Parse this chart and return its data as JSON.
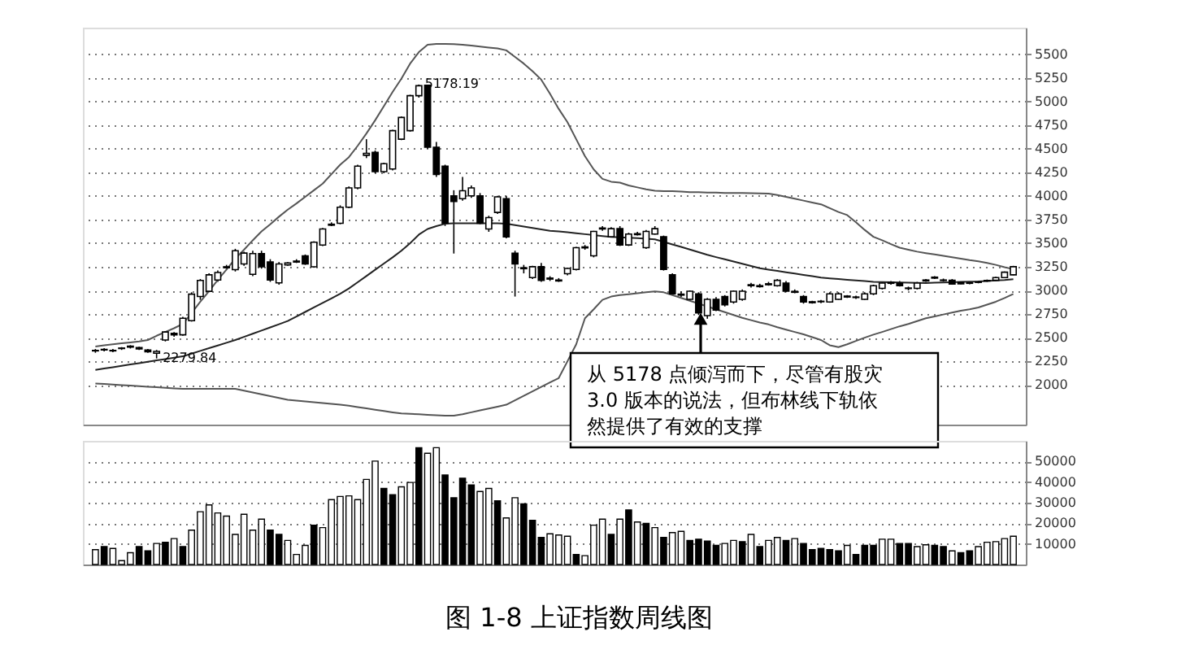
{
  "chart_data": [
    {
      "type": "candlestick",
      "categories": [
        null,
        null,
        null,
        null,
        null,
        null,
        null,
        null,
        null,
        null,
        null,
        null,
        null,
        null,
        null,
        null,
        null,
        null,
        null,
        null,
        null,
        null,
        null,
        null,
        null,
        null,
        null,
        null,
        null,
        null,
        null,
        null,
        null,
        null,
        null,
        null,
        null,
        null,
        null,
        null,
        null,
        null,
        null,
        null,
        null,
        null,
        null,
        null,
        null,
        null,
        null,
        null,
        null,
        null,
        null,
        null,
        null,
        null,
        null,
        null,
        null,
        null,
        null,
        null,
        null,
        null,
        null,
        null,
        null,
        null,
        null,
        null,
        null,
        null,
        null,
        null,
        null,
        null,
        null,
        null,
        null,
        null,
        null,
        null,
        null,
        null,
        null,
        null,
        null,
        null,
        null,
        null,
        null,
        null,
        null,
        null,
        null,
        null,
        null,
        null,
        null,
        null,
        null,
        null,
        null,
        null
      ],
      "ohlc": [
        [
          2360,
          2380,
          2340,
          2365
        ],
        [
          2370,
          2390,
          2355,
          2375
        ],
        [
          2365,
          2380,
          2345,
          2360
        ],
        [
          2385,
          2400,
          2370,
          2390
        ],
        [
          2400,
          2420,
          2385,
          2410
        ],
        [
          2395,
          2405,
          2370,
          2380
        ],
        [
          2370,
          2380,
          2340,
          2350
        ],
        [
          2335,
          2370,
          2279.84,
          2355
        ],
        [
          2475,
          2570,
          2460,
          2560
        ],
        [
          2530,
          2560,
          2510,
          2545
        ],
        [
          2530,
          2720,
          2520,
          2705
        ],
        [
          2680,
          2980,
          2670,
          2960
        ],
        [
          2935,
          3120,
          2900,
          3105
        ],
        [
          2990,
          3180,
          2980,
          3165
        ],
        [
          3110,
          3210,
          3090,
          3190
        ],
        [
          3240,
          3270,
          3220,
          3250
        ],
        [
          3220,
          3440,
          3200,
          3420
        ],
        [
          3280,
          3410,
          3260,
          3395
        ],
        [
          3170,
          3420,
          3150,
          3390
        ],
        [
          3390,
          3420,
          3230,
          3250
        ],
        [
          3300,
          3330,
          3090,
          3110
        ],
        [
          3080,
          3300,
          3060,
          3280
        ],
        [
          3270,
          3300,
          3260,
          3290
        ],
        [
          3300,
          3330,
          3290,
          3310
        ],
        [
          3365,
          3380,
          3270,
          3280
        ],
        [
          3250,
          3520,
          3240,
          3510
        ],
        [
          3480,
          3660,
          3470,
          3650
        ],
        [
          3690,
          3720,
          3680,
          3700
        ],
        [
          3710,
          3900,
          3700,
          3880
        ],
        [
          3880,
          4100,
          3870,
          4085
        ],
        [
          4085,
          4330,
          4070,
          4315
        ],
        [
          4430,
          4600,
          4400,
          4450
        ],
        [
          4460,
          4480,
          4240,
          4256
        ],
        [
          4256,
          4350,
          4240,
          4340
        ],
        [
          4285,
          4700,
          4270,
          4690
        ],
        [
          4600,
          4840,
          4590,
          4830
        ],
        [
          4690,
          5070,
          4680,
          5060
        ],
        [
          5060,
          5178.19,
          5040,
          5166
        ],
        [
          5170,
          5176,
          4500,
          4515
        ],
        [
          4515,
          4570,
          4200,
          4228
        ],
        [
          4314,
          4330,
          3682,
          3710
        ],
        [
          4000,
          4060,
          3390,
          3940
        ],
        [
          3970,
          4200,
          3950,
          4055
        ],
        [
          4000,
          4110,
          3980,
          4084
        ],
        [
          4000,
          4030,
          3700,
          3710
        ],
        [
          3650,
          3790,
          3620,
          3770
        ],
        [
          3825,
          4000,
          3810,
          3990
        ],
        [
          3969,
          4000,
          3550,
          3567
        ],
        [
          3394,
          3420,
          2935,
          3280
        ],
        [
          3240,
          3270,
          3180,
          3230
        ],
        [
          3136,
          3260,
          3120,
          3251
        ],
        [
          3251,
          3290,
          3090,
          3107
        ],
        [
          3120,
          3150,
          3100,
          3130
        ],
        [
          3110,
          3130,
          3090,
          3100
        ],
        [
          3176,
          3240,
          3160,
          3233
        ],
        [
          3222,
          3460,
          3210,
          3452
        ],
        [
          3450,
          3480,
          3430,
          3460
        ],
        [
          3366,
          3630,
          3350,
          3624
        ],
        [
          3650,
          3680,
          3630,
          3660
        ],
        [
          3567,
          3670,
          3560,
          3653
        ],
        [
          3653,
          3680,
          3470,
          3481
        ],
        [
          3481,
          3610,
          3470,
          3596
        ],
        [
          3590,
          3620,
          3580,
          3600
        ],
        [
          3452,
          3640,
          3440,
          3624
        ],
        [
          3596,
          3680,
          3590,
          3653
        ],
        [
          3567,
          3580,
          3210,
          3222
        ],
        [
          3165,
          3180,
          2950,
          2963
        ],
        [
          2960,
          2990,
          2930,
          2950
        ],
        [
          2906,
          3000,
          2890,
          2992
        ],
        [
          2963,
          2980,
          2740,
          2762
        ],
        [
          2733,
          2920,
          2700,
          2906
        ],
        [
          2906,
          2930,
          2780,
          2791
        ],
        [
          2935,
          2950,
          2830,
          2848
        ],
        [
          2877,
          3000,
          2860,
          2992
        ],
        [
          2906,
          3010,
          2890,
          2992
        ],
        [
          3050,
          3080,
          3030,
          3060
        ],
        [
          3050,
          3070,
          3030,
          3040
        ],
        [
          3060,
          3090,
          3050,
          3070
        ],
        [
          3050,
          3120,
          3040,
          3107
        ],
        [
          3078,
          3100,
          2980,
          2992
        ],
        [
          2990,
          3010,
          2970,
          2980
        ],
        [
          2935,
          2950,
          2860,
          2877
        ],
        [
          2870,
          2890,
          2860,
          2880
        ],
        [
          2880,
          2900,
          2865,
          2885
        ],
        [
          2877,
          2980,
          2870,
          2963
        ],
        [
          2906,
          2980,
          2900,
          2963
        ],
        [
          2930,
          2950,
          2920,
          2940
        ],
        [
          2925,
          2945,
          2910,
          2930
        ],
        [
          2906,
          2980,
          2900,
          2963
        ],
        [
          2963,
          3060,
          2950,
          3050
        ],
        [
          3021,
          3090,
          3010,
          3078
        ],
        [
          3075,
          3100,
          3060,
          3085
        ],
        [
          3078,
          3100,
          3040,
          3050
        ],
        [
          3020,
          3040,
          3000,
          3025
        ],
        [
          3021,
          3090,
          3010,
          3078
        ],
        [
          3100,
          3120,
          3090,
          3110
        ],
        [
          3130,
          3150,
          3120,
          3140
        ],
        [
          3105,
          3125,
          3095,
          3110
        ],
        [
          3107,
          3120,
          3060,
          3067
        ],
        [
          3085,
          3095,
          3065,
          3070
        ],
        [
          3075,
          3090,
          3065,
          3080
        ],
        [
          3085,
          3100,
          3075,
          3090
        ],
        [
          3100,
          3115,
          3090,
          3105
        ],
        [
          3107,
          3145,
          3100,
          3136
        ],
        [
          3136,
          3200,
          3130,
          3193
        ],
        [
          3165,
          3260,
          3160,
          3251
        ]
      ],
      "colors": [
        "#ffffff",
        "#ffffff",
        "#000000",
        "#ffffff",
        "#ffffff",
        "#000000",
        "#000000",
        "#ffffff",
        "#ffffff",
        "#ffffff",
        "#ffffff",
        "#ffffff",
        "#ffffff",
        "#ffffff",
        "#ffffff",
        "#ffffff",
        "#ffffff",
        "#ffffff",
        "#ffffff",
        "#000000",
        "#000000",
        "#ffffff",
        "#ffffff",
        "#ffffff",
        "#000000",
        "#ffffff",
        "#ffffff",
        "#ffffff",
        "#ffffff",
        "#ffffff",
        "#ffffff",
        "#ffffff",
        "#000000",
        "#ffffff",
        "#ffffff",
        "#ffffff",
        "#ffffff",
        "#ffffff",
        "#000000",
        "#000000",
        "#000000",
        "#000000",
        "#ffffff",
        "#ffffff",
        "#000000",
        "#ffffff",
        "#ffffff",
        "#000000",
        "#000000",
        "#000000",
        "#ffffff",
        "#000000",
        "#ffffff",
        "#000000",
        "#ffffff",
        "#ffffff",
        "#ffffff",
        "#ffffff",
        "#ffffff",
        "#ffffff",
        "#000000",
        "#ffffff",
        "#ffffff",
        "#ffffff",
        "#ffffff",
        "#000000",
        "#000000",
        "#000000",
        "#ffffff",
        "#000000",
        "#ffffff",
        "#000000",
        "#000000",
        "#ffffff",
        "#ffffff",
        "#ffffff",
        "#000000",
        "#ffffff",
        "#ffffff",
        "#000000",
        "#000000",
        "#000000",
        "#ffffff",
        "#ffffff",
        "#ffffff",
        "#ffffff",
        "#ffffff",
        "#ffffff",
        "#ffffff",
        "#ffffff",
        "#ffffff",
        "#ffffff",
        "#000000",
        "#ffffff",
        "#ffffff",
        "#ffffff",
        "#ffffff",
        "#ffffff",
        "#000000",
        "#000000",
        "#ffffff",
        "#ffffff",
        "#ffffff",
        "#ffffff",
        "#ffffff",
        "#ffffff"
      ],
      "series": [
        {
          "type": "line",
          "color": "#555555",
          "values": [
            2406,
            2420,
            2430,
            2440,
            2450,
            2460,
            2475,
            2520,
            2560,
            2600,
            2647,
            2760,
            2880,
            2992,
            3110,
            3220,
            3337,
            3430,
            3530,
            3624,
            3700,
            3780,
            3854,
            3920,
            3990,
            4060,
            4130,
            4230,
            4330,
            4410,
            4530,
            4660,
            4800,
            4950,
            5100,
            5240,
            5400,
            5521,
            5600,
            5607,
            5607,
            5605,
            5600,
            5590,
            5580,
            5570,
            5560,
            5540,
            5470,
            5400,
            5320,
            5230,
            5080,
            4920,
            4780,
            4600,
            4420,
            4280,
            4180,
            4150,
            4140,
            4110,
            4090,
            4070,
            4055,
            4050,
            4050,
            4045,
            4040,
            4040,
            4035,
            4035,
            4030,
            4030,
            4030,
            4028,
            4027,
            4025,
            4010,
            3990,
            3970,
            3950,
            3930,
            3911,
            3870,
            3830,
            3797,
            3720,
            3640,
            3567,
            3530,
            3490,
            3452,
            3430,
            3410,
            3394,
            3380,
            3365,
            3350,
            3335,
            3320,
            3308,
            3290,
            3270,
            3245,
            3225
          ]
        },
        {
          "type": "line",
          "color": "#222222",
          "values": [
            2159,
            2173,
            2187,
            2201,
            2216,
            2230,
            2245,
            2259,
            2273,
            2288,
            2302,
            2331,
            2360,
            2389,
            2417,
            2446,
            2475,
            2508,
            2542,
            2575,
            2609,
            2642,
            2676,
            2724,
            2772,
            2820,
            2868,
            2916,
            2964,
            3020,
            3086,
            3152,
            3218,
            3284,
            3350,
            3420,
            3500,
            3590,
            3650,
            3680,
            3705,
            3710,
            3710,
            3710,
            3710,
            3710,
            3710,
            3705,
            3690,
            3675,
            3660,
            3645,
            3630,
            3624,
            3615,
            3605,
            3595,
            3585,
            3575,
            3567,
            3562,
            3557,
            3552,
            3546,
            3540,
            3515,
            3487,
            3460,
            3432,
            3404,
            3376,
            3352,
            3329,
            3305,
            3282,
            3258,
            3234,
            3220,
            3206,
            3192,
            3178,
            3164,
            3150,
            3136,
            3128,
            3121,
            3113,
            3105,
            3098,
            3090,
            3088,
            3086,
            3084,
            3082,
            3080,
            3078,
            3081,
            3084,
            3087,
            3090,
            3093,
            3095,
            3100,
            3105,
            3110,
            3118
          ]
        },
        {
          "type": "line",
          "color": "#555555",
          "values": [
            2015,
            2010,
            2004,
            1998,
            1993,
            1987,
            1981,
            1975,
            1970,
            1964,
            1958,
            1958,
            1958,
            1958,
            1958,
            1958,
            1958,
            1939,
            1920,
            1900,
            1881,
            1862,
            1843,
            1834,
            1826,
            1817,
            1808,
            1800,
            1791,
            1780,
            1766,
            1752,
            1738,
            1724,
            1710,
            1698,
            1694,
            1689,
            1684,
            1679,
            1674,
            1675,
            1690,
            1710,
            1730,
            1750,
            1770,
            1790,
            1838,
            1885,
            1932,
            1979,
            2026,
            2072,
            2250,
            2430,
            2705,
            2800,
            2900,
            2935,
            2950,
            2960,
            2970,
            2980,
            2990,
            2980,
            2950,
            2920,
            2890,
            2860,
            2830,
            2800,
            2770,
            2740,
            2710,
            2685,
            2660,
            2640,
            2610,
            2585,
            2560,
            2535,
            2505,
            2475,
            2420,
            2400,
            2430,
            2465,
            2500,
            2532,
            2560,
            2590,
            2620,
            2645,
            2675,
            2705,
            2725,
            2745,
            2765,
            2785,
            2800,
            2820,
            2850,
            2880,
            2920,
            2963
          ]
        }
      ],
      "ylim": [
        1580,
        5780
      ],
      "yticks": [
        2000,
        2250,
        2500,
        2750,
        3000,
        3250,
        3500,
        3750,
        4000,
        4250,
        4500,
        4750,
        5000,
        5250,
        5500
      ],
      "grid": "y",
      "tick_labels": "y",
      "annotations": [
        "从 5178 点倾泻而下，尽管有股灾 3.0 版本的说法，但布林线下轨依然提供了有效的支撑",
        "5178.19",
        "2279.84"
      ]
    },
    {
      "type": "bar",
      "categories": [
        null,
        null,
        null,
        null,
        null,
        null,
        null,
        null,
        null,
        null,
        null,
        null,
        null,
        null,
        null,
        null,
        null,
        null,
        null,
        null,
        null,
        null,
        null,
        null,
        null,
        null,
        null,
        null,
        null,
        null,
        null,
        null,
        null,
        null,
        null,
        null,
        null,
        null,
        null,
        null,
        null,
        null,
        null,
        null,
        null,
        null,
        null,
        null,
        null,
        null,
        null,
        null,
        null,
        null,
        null,
        null,
        null,
        null,
        null,
        null,
        null,
        null,
        null,
        null,
        null,
        null,
        null,
        null,
        null,
        null,
        null,
        null,
        null,
        null,
        null,
        null,
        null,
        null,
        null,
        null,
        null,
        null,
        null,
        null,
        null,
        null,
        null,
        null,
        null,
        null,
        null,
        null,
        null,
        null,
        null,
        null,
        null,
        null,
        null,
        null,
        null,
        null,
        null,
        null,
        null,
        null
      ],
      "values": [
        7200,
        8700,
        7800,
        1900,
        5700,
        8700,
        6600,
        10200,
        10800,
        12600,
        8700,
        16700,
        25600,
        28900,
        25000,
        23500,
        14600,
        24400,
        16700,
        22000,
        16700,
        14600,
        11700,
        4900,
        9300,
        19100,
        17900,
        31500,
        33000,
        33300,
        31500,
        41300,
        50200,
        36900,
        33900,
        37700,
        39800,
        56700,
        54000,
        56700,
        43400,
        32400,
        41900,
        38600,
        35400,
        36900,
        30900,
        22600,
        32400,
        29400,
        21400,
        13100,
        14900,
        14300,
        13700,
        4900,
        4300,
        19100,
        22000,
        14600,
        22000,
        26500,
        20600,
        20000,
        17900,
        13100,
        15500,
        16100,
        11700,
        12300,
        11400,
        9300,
        10200,
        11700,
        11100,
        14600,
        8700,
        11700,
        13100,
        11700,
        12600,
        10200,
        7200,
        7800,
        7200,
        6600,
        9300,
        4900,
        9300,
        9300,
        12300,
        12300,
        10200,
        10200,
        8700,
        9600,
        9300,
        8700,
        6600,
        5700,
        6600,
        8700,
        10800,
        11100,
        12600,
        13700
      ],
      "colors": [
        "#ffffff",
        "#000000",
        "#ffffff",
        "#ffffff",
        "#ffffff",
        "#000000",
        "#000000",
        "#ffffff",
        "#000000",
        "#ffffff",
        "#000000",
        "#ffffff",
        "#ffffff",
        "#ffffff",
        "#ffffff",
        "#ffffff",
        "#ffffff",
        "#ffffff",
        "#ffffff",
        "#ffffff",
        "#000000",
        "#000000",
        "#ffffff",
        "#ffffff",
        "#ffffff",
        "#000000",
        "#ffffff",
        "#ffffff",
        "#ffffff",
        "#ffffff",
        "#ffffff",
        "#ffffff",
        "#ffffff",
        "#000000",
        "#000000",
        "#ffffff",
        "#ffffff",
        "#000000",
        "#ffffff",
        "#ffffff",
        "#000000",
        "#000000",
        "#000000",
        "#000000",
        "#ffffff",
        "#ffffff",
        "#000000",
        "#ffffff",
        "#ffffff",
        "#000000",
        "#000000",
        "#000000",
        "#ffffff",
        "#ffffff",
        "#ffffff",
        "#000000",
        "#ffffff",
        "#ffffff",
        "#ffffff",
        "#000000",
        "#ffffff",
        "#000000",
        "#ffffff",
        "#000000",
        "#ffffff",
        "#000000",
        "#ffffff",
        "#ffffff",
        "#000000",
        "#000000",
        "#000000",
        "#000000",
        "#ffffff",
        "#ffffff",
        "#000000",
        "#ffffff",
        "#000000",
        "#ffffff",
        "#ffffff",
        "#000000",
        "#ffffff",
        "#000000",
        "#000000",
        "#000000",
        "#000000",
        "#000000",
        "#ffffff",
        "#000000",
        "#000000",
        "#000000",
        "#ffffff",
        "#ffffff",
        "#000000",
        "#000000",
        "#ffffff",
        "#ffffff",
        "#000000",
        "#000000",
        "#ffffff",
        "#000000",
        "#000000",
        "#ffffff",
        "#ffffff",
        "#ffffff",
        "#ffffff",
        "#ffffff"
      ],
      "ylim": [
        0,
        60000
      ],
      "yticks": [
        10000,
        20000,
        30000,
        40000,
        50000
      ],
      "grid": "y",
      "tick_labels": "y",
      "annotations": [
        "图 1-8 上证指数周线图"
      ]
    }
  ]
}
